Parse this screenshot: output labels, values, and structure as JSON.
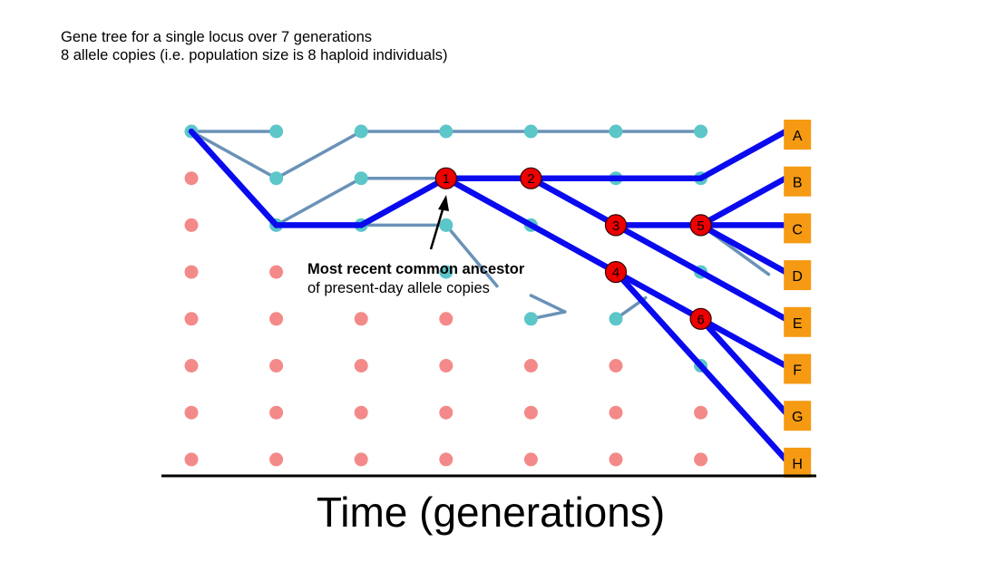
{
  "title": {
    "line1": "Gene tree for a single locus over 7 generations",
    "line2": "8 allele copies (i.e. population size is 8 haploid individuals)"
  },
  "axis_label": "Time (generations)",
  "annotation": {
    "line1": "Most recent common ancestor",
    "line2": "of present-day allele copies"
  },
  "colors": {
    "lineage_dot": "#5cc6c9",
    "extinct_dot": "#f38a89",
    "lineage_line": "#6a92b8",
    "gene_tree": "#0a0aee",
    "coalescent_node": "#ee0000",
    "tip_box": "#f59a12"
  },
  "generations": 7,
  "population_size": 8,
  "lineage_dots": [
    [
      0,
      0
    ],
    [
      1,
      0
    ],
    [
      2,
      0
    ],
    [
      3,
      0
    ],
    [
      4,
      0
    ],
    [
      5,
      0
    ],
    [
      6,
      0
    ],
    [
      1,
      1
    ],
    [
      2,
      1
    ],
    [
      3,
      1
    ],
    [
      4,
      1
    ],
    [
      5,
      1
    ],
    [
      6,
      1
    ],
    [
      1,
      2
    ],
    [
      2,
      2
    ],
    [
      3,
      2
    ],
    [
      4,
      2
    ],
    [
      5,
      2
    ],
    [
      6,
      2
    ],
    [
      3,
      3
    ],
    [
      5,
      3
    ],
    [
      6,
      3
    ],
    [
      4,
      4
    ],
    [
      5,
      4
    ],
    [
      6,
      5
    ]
  ],
  "extinct_dots": [
    [
      0,
      1
    ],
    [
      0,
      2
    ],
    [
      0,
      3
    ],
    [
      1,
      3
    ],
    [
      0,
      4
    ],
    [
      1,
      4
    ],
    [
      2,
      4
    ],
    [
      3,
      4
    ],
    [
      0,
      5
    ],
    [
      1,
      5
    ],
    [
      2,
      5
    ],
    [
      3,
      5
    ],
    [
      4,
      5
    ],
    [
      5,
      5
    ],
    [
      0,
      6
    ],
    [
      1,
      6
    ],
    [
      2,
      6
    ],
    [
      3,
      6
    ],
    [
      4,
      6
    ],
    [
      5,
      6
    ],
    [
      6,
      6
    ],
    [
      0,
      7
    ],
    [
      1,
      7
    ],
    [
      2,
      7
    ],
    [
      3,
      7
    ],
    [
      4,
      7
    ],
    [
      5,
      7
    ],
    [
      6,
      7
    ]
  ],
  "lineage_lines": [
    [
      [
        0,
        0
      ],
      [
        1,
        0
      ]
    ],
    [
      [
        0,
        0
      ],
      [
        1,
        1
      ]
    ],
    [
      [
        1,
        1
      ],
      [
        2,
        0
      ]
    ],
    [
      [
        2,
        0
      ],
      [
        3,
        0
      ]
    ],
    [
      [
        3,
        0
      ],
      [
        6,
        0
      ]
    ],
    [
      [
        1,
        2
      ],
      [
        2,
        1
      ]
    ],
    [
      [
        2,
        1
      ],
      [
        3,
        1
      ]
    ],
    [
      [
        1,
        2
      ],
      [
        3,
        2
      ]
    ],
    [
      [
        3,
        2
      ],
      [
        3.6,
        3.3
      ]
    ],
    [
      [
        4.0,
        3.5
      ],
      [
        4.4,
        3.85
      ]
    ],
    [
      [
        4.4,
        3.85
      ],
      [
        4,
        4
      ]
    ],
    [
      [
        5.35,
        3.55
      ],
      [
        5,
        4
      ]
    ],
    [
      [
        6,
        2
      ],
      [
        6.8,
        3.05
      ]
    ]
  ],
  "gene_tree_edges": [
    [
      [
        0,
        0
      ],
      [
        1,
        2
      ]
    ],
    [
      [
        1,
        2
      ],
      [
        2,
        2
      ]
    ],
    [
      [
        2,
        2
      ],
      [
        3,
        1
      ]
    ],
    [
      [
        3,
        1
      ],
      [
        4,
        1
      ]
    ],
    [
      [
        4,
        1
      ],
      [
        6,
        1
      ]
    ],
    [
      [
        6,
        1
      ],
      [
        7,
        0
      ]
    ],
    [
      [
        4,
        1
      ],
      [
        5,
        2
      ]
    ],
    [
      [
        5,
        2
      ],
      [
        6,
        2
      ]
    ],
    [
      [
        6,
        2
      ],
      [
        7,
        1
      ]
    ],
    [
      [
        6,
        2
      ],
      [
        7,
        2
      ]
    ],
    [
      [
        6,
        2
      ],
      [
        7,
        3
      ]
    ],
    [
      [
        5,
        2
      ],
      [
        7,
        4
      ]
    ],
    [
      [
        3,
        1
      ],
      [
        5,
        3
      ]
    ],
    [
      [
        5,
        3
      ],
      [
        6,
        4
      ]
    ],
    [
      [
        6,
        4
      ],
      [
        7,
        5
      ]
    ],
    [
      [
        6,
        4
      ],
      [
        7,
        6
      ]
    ],
    [
      [
        5,
        3
      ],
      [
        7,
        7
      ]
    ]
  ],
  "coalescent_nodes": [
    {
      "label": "1",
      "gen": 3,
      "row": 1
    },
    {
      "label": "2",
      "gen": 4,
      "row": 1
    },
    {
      "label": "3",
      "gen": 5,
      "row": 2
    },
    {
      "label": "5",
      "gen": 6,
      "row": 2
    },
    {
      "label": "4",
      "gen": 5,
      "row": 3
    },
    {
      "label": "6",
      "gen": 6,
      "row": 4
    }
  ],
  "tips": [
    "A",
    "B",
    "C",
    "D",
    "E",
    "F",
    "G",
    "H"
  ]
}
